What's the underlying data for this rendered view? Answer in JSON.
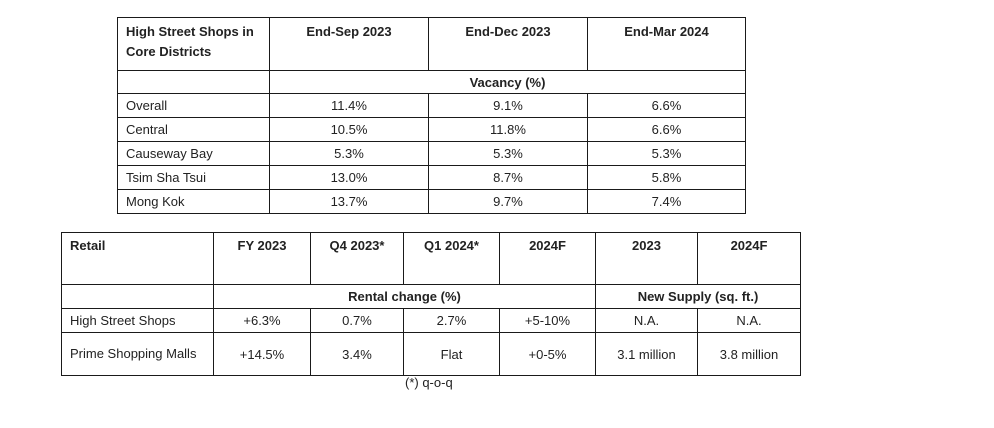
{
  "vacancy_table": {
    "header": [
      "High Street Shops in Core Districts",
      "End-Sep 2023",
      "End-Dec 2023",
      "End-Mar 2024"
    ],
    "subheader": "Vacancy (%)",
    "rows": [
      [
        "Overall",
        "11.4%",
        "9.1%",
        "6.6%"
      ],
      [
        "Central",
        "10.5%",
        "11.8%",
        "6.6%"
      ],
      [
        "Causeway Bay",
        "5.3%",
        "5.3%",
        "5.3%"
      ],
      [
        "Tsim Sha Tsui",
        "13.0%",
        "8.7%",
        "5.8%"
      ],
      [
        "Mong Kok",
        "13.7%",
        "9.7%",
        "7.4%"
      ]
    ]
  },
  "retail_table": {
    "header": [
      "Retail",
      "FY 2023",
      "Q4 2023*",
      "Q1 2024*",
      "2024F",
      "2023",
      "2024F"
    ],
    "subheader_rental": "Rental change (%)",
    "subheader_supply": "New Supply (sq. ft.)",
    "rows": [
      [
        "High Street Shops",
        "+6.3%",
        "0.7%",
        "2.7%",
        "+5-10%",
        "N.A.",
        "N.A."
      ],
      [
        "Prime Shopping Malls",
        "+14.5%",
        "3.4%",
        "Flat",
        "+0-5%",
        "3.1 million",
        "3.8 million"
      ]
    ]
  },
  "footnote": "(*) q-o-q"
}
